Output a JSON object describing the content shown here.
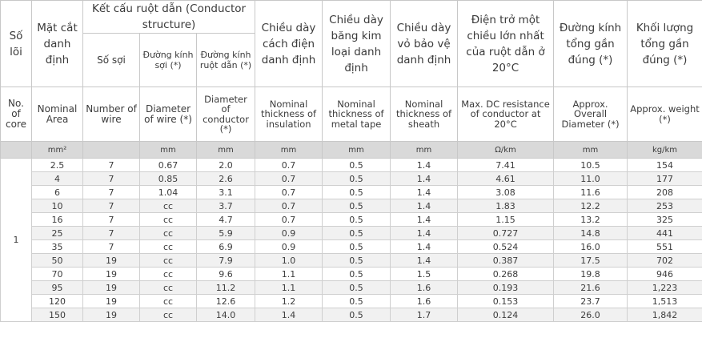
{
  "header_vi": {
    "cores": "Số lõi",
    "area": "Mặt cắt danh định",
    "conductor_structure": "Kết cấu ruột dẫn (Conductor structure)",
    "num_wires": "Số sợi",
    "wire_diameter": "Đường kính sợi (*)",
    "conductor_diameter": "Đường kính ruột dẫn (*)",
    "insulation": "Chiều dày cách điện danh định",
    "metal_tape": "Chiều dày băng kim loại danh định",
    "sheath": "Chiều dày vỏ bảo vệ danh định",
    "resistance": "Điện trở một chiều lớn nhất của ruột dẫn ở 20°C",
    "overall_diameter": "Đường kính tổng gần đúng (*)",
    "weight": "Khối lượng tổng gần đúng (*)"
  },
  "header_en": {
    "cores": "No. of core",
    "area": "Nominal Area",
    "num_wires": "Number of wire",
    "wire_diameter": "Diameter of wire (*)",
    "conductor_diameter": "Diameter of conductor (*)",
    "insulation": "Nominal thickness of insulation",
    "metal_tape": "Nominal thickness of metal tape",
    "sheath": "Nominal thickness of sheath",
    "resistance": "Max. DC resistance of conductor at 20°C",
    "overall_diameter": "Approx. Overall Diameter (*)",
    "weight": "Approx. weight (*)"
  },
  "units": {
    "area": "mm²",
    "wire_diameter": "mm",
    "conductor_diameter": "mm",
    "insulation": "mm",
    "metal_tape": "mm",
    "sheath": "mm",
    "resistance": "Ω/km",
    "overall_diameter": "mm",
    "weight": "kg/km"
  },
  "core_count": "1",
  "rows": [
    [
      "2.5",
      "7",
      "0.67",
      "2.0",
      "0.7",
      "0.5",
      "1.4",
      "7.41",
      "10.5",
      "154"
    ],
    [
      "4",
      "7",
      "0.85",
      "2.6",
      "0.7",
      "0.5",
      "1.4",
      "4.61",
      "11.0",
      "177"
    ],
    [
      "6",
      "7",
      "1.04",
      "3.1",
      "0.7",
      "0.5",
      "1.4",
      "3.08",
      "11.6",
      "208"
    ],
    [
      "10",
      "7",
      "cc",
      "3.7",
      "0.7",
      "0.5",
      "1.4",
      "1.83",
      "12.2",
      "253"
    ],
    [
      "16",
      "7",
      "cc",
      "4.7",
      "0.7",
      "0.5",
      "1.4",
      "1.15",
      "13.2",
      "325"
    ],
    [
      "25",
      "7",
      "cc",
      "5.9",
      "0.9",
      "0.5",
      "1.4",
      "0.727",
      "14.8",
      "441"
    ],
    [
      "35",
      "7",
      "cc",
      "6.9",
      "0.9",
      "0.5",
      "1.4",
      "0.524",
      "16.0",
      "551"
    ],
    [
      "50",
      "19",
      "cc",
      "7.9",
      "1.0",
      "0.5",
      "1.4",
      "0.387",
      "17.5",
      "702"
    ],
    [
      "70",
      "19",
      "cc",
      "9.6",
      "1.1",
      "0.5",
      "1.5",
      "0.268",
      "19.8",
      "946"
    ],
    [
      "95",
      "19",
      "cc",
      "11.2",
      "1.1",
      "0.5",
      "1.6",
      "0.193",
      "21.6",
      "1,223"
    ],
    [
      "120",
      "19",
      "cc",
      "12.6",
      "1.2",
      "0.5",
      "1.6",
      "0.153",
      "23.7",
      "1,513"
    ],
    [
      "150",
      "19",
      "cc",
      "14.0",
      "1.4",
      "0.5",
      "1.7",
      "0.124",
      "26.0",
      "1,842"
    ]
  ]
}
